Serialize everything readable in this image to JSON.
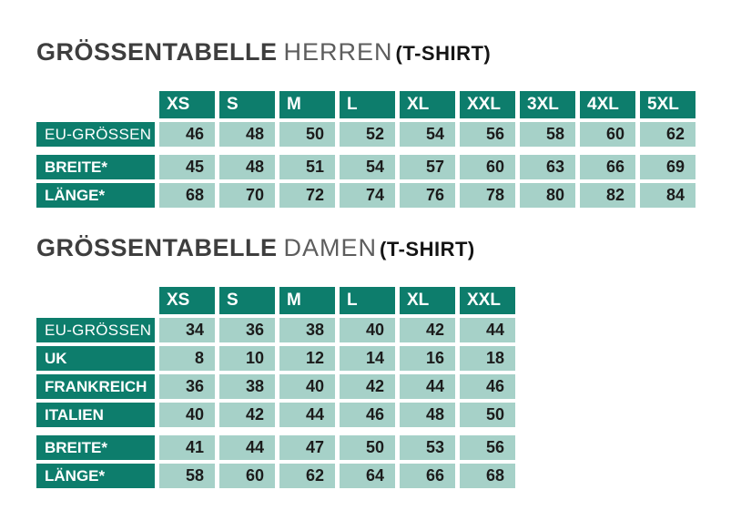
{
  "colors": {
    "header_bg": "#0d7d6c",
    "cell_bg": "#a6d1c8",
    "header_text": "#ffffff",
    "cell_text": "#1c1c1c",
    "title_main": "#3e3e3e",
    "title_sub": "#5d5d5d",
    "title_suffix": "#141414",
    "page_bg": "#ffffff"
  },
  "sections": [
    {
      "title": {
        "main": "GRÖSSENTABELLE",
        "sub": "HERREN",
        "suffix": "(T-SHIRT)"
      },
      "table": {
        "columns": [
          "XS",
          "S",
          "M",
          "L",
          "XL",
          "XXL",
          "3XL",
          "4XL",
          "5XL"
        ],
        "rows": [
          {
            "label": "EU-GRÖSSEN",
            "bold": false,
            "group_gap": false,
            "values": [
              "46",
              "48",
              "50",
              "52",
              "54",
              "56",
              "58",
              "60",
              "62"
            ]
          },
          {
            "label": "BREITE*",
            "bold": true,
            "group_gap": true,
            "values": [
              "45",
              "48",
              "51",
              "54",
              "57",
              "60",
              "63",
              "66",
              "69"
            ]
          },
          {
            "label": "LÄNGE*",
            "bold": true,
            "group_gap": false,
            "values": [
              "68",
              "70",
              "72",
              "74",
              "76",
              "78",
              "80",
              "82",
              "84"
            ]
          }
        ]
      }
    },
    {
      "title": {
        "main": "GRÖSSENTABELLE",
        "sub": "DAMEN",
        "suffix": "(T-SHIRT)"
      },
      "table": {
        "columns": [
          "XS",
          "S",
          "M",
          "L",
          "XL",
          "XXL"
        ],
        "rows": [
          {
            "label": "EU-GRÖSSEN",
            "bold": false,
            "group_gap": false,
            "values": [
              "34",
              "36",
              "38",
              "40",
              "42",
              "44"
            ]
          },
          {
            "label": "UK",
            "bold": true,
            "group_gap": false,
            "values": [
              "8",
              "10",
              "12",
              "14",
              "16",
              "18"
            ]
          },
          {
            "label": "FRANKREICH",
            "bold": true,
            "group_gap": false,
            "values": [
              "36",
              "38",
              "40",
              "42",
              "44",
              "46"
            ]
          },
          {
            "label": "ITALIEN",
            "bold": true,
            "group_gap": false,
            "values": [
              "40",
              "42",
              "44",
              "46",
              "48",
              "50"
            ]
          },
          {
            "label": "BREITE*",
            "bold": true,
            "group_gap": true,
            "values": [
              "41",
              "44",
              "47",
              "50",
              "53",
              "56"
            ]
          },
          {
            "label": "LÄNGE*",
            "bold": true,
            "group_gap": false,
            "values": [
              "58",
              "60",
              "62",
              "64",
              "66",
              "68"
            ]
          }
        ]
      }
    }
  ]
}
